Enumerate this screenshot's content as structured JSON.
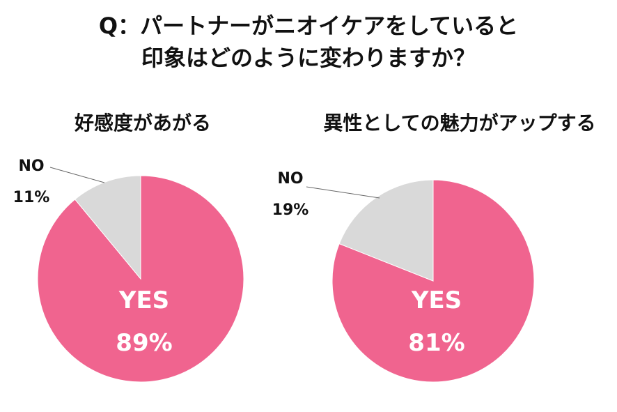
{
  "header": {
    "title_line1": "Q：パートナーがニオイケアをしていると",
    "title_line2": "印象はどのように変わりますか？"
  },
  "colors": {
    "yes": "#f0648f",
    "no": "#d9d9d9",
    "text_on_yes": "#ffffff",
    "leader": "#666666"
  },
  "chart_data": [
    {
      "type": "pie",
      "title": "好感度があがる",
      "slices": [
        {
          "label": "YES",
          "value": 89,
          "display": "89%"
        },
        {
          "label": "NO",
          "value": 11,
          "display": "11%"
        }
      ]
    },
    {
      "type": "pie",
      "title": "異性としての魅力がアップする",
      "slices": [
        {
          "label": "YES",
          "value": 81,
          "display": "81%"
        },
        {
          "label": "NO",
          "value": 19,
          "display": "19%"
        }
      ]
    }
  ]
}
